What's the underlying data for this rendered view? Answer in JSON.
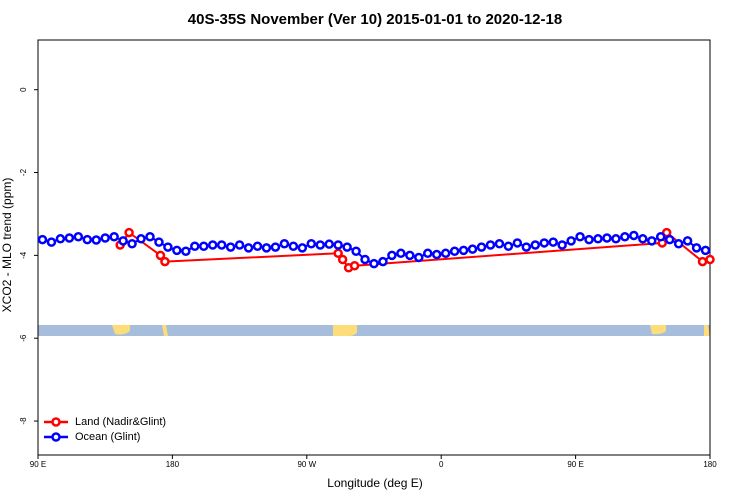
{
  "chart_data": {
    "type": "line",
    "title": "40S-35S November (Ver 10)   2015-01-01 to 2020-12-18",
    "x_label": "Longitude (deg E)",
    "y_label": "XCO2 - MLO trend (ppm)",
    "xlim": [
      90,
      540
    ],
    "ylim": [
      -8.82,
      1.2
    ],
    "xticks": [
      {
        "value": 90,
        "label": "90 E"
      },
      180,
      {
        "value": 270,
        "label": "90 W"
      },
      {
        "value": 360,
        "label": "0"
      },
      {
        "value": 450,
        "label": "90 E"
      },
      {
        "value": 540,
        "label": "180"
      }
    ],
    "yticks": [
      0,
      -2,
      -4,
      -6,
      -8
    ],
    "legend": "bottom-left",
    "series": [
      {
        "name": "Land (Nadir&Glint)",
        "color": "#ff0000",
        "x": [
          145,
          151,
          172,
          175,
          291,
          294,
          298,
          302,
          508,
          511,
          535,
          540
        ],
        "values": [
          -3.75,
          -3.45,
          -4.0,
          -4.15,
          -3.95,
          -4.1,
          -4.3,
          -4.25,
          -3.7,
          -3.45,
          -4.15,
          -4.1
        ]
      },
      {
        "name": "Ocean (Glint)",
        "color": "#0000ff",
        "x": [
          93,
          99,
          105,
          111,
          117,
          123,
          129,
          135,
          141,
          147,
          153,
          159,
          165,
          171,
          177,
          183,
          189,
          195,
          201,
          207,
          213,
          219,
          225,
          231,
          237,
          243,
          249,
          255,
          261,
          267,
          273,
          279,
          285,
          291,
          297,
          303,
          309,
          315,
          321,
          327,
          333,
          339,
          345,
          351,
          357,
          363,
          369,
          375,
          381,
          387,
          393,
          399,
          405,
          411,
          417,
          423,
          429,
          435,
          441,
          447,
          453,
          459,
          465,
          471,
          477,
          483,
          489,
          495,
          501,
          507,
          513,
          519,
          525,
          531,
          537
        ],
        "values": [
          -3.62,
          -3.68,
          -3.6,
          -3.58,
          -3.55,
          -3.62,
          -3.63,
          -3.58,
          -3.55,
          -3.65,
          -3.72,
          -3.6,
          -3.55,
          -3.68,
          -3.8,
          -3.88,
          -3.9,
          -3.78,
          -3.78,
          -3.75,
          -3.75,
          -3.8,
          -3.75,
          -3.82,
          -3.78,
          -3.82,
          -3.8,
          -3.72,
          -3.78,
          -3.82,
          -3.72,
          -3.75,
          -3.73,
          -3.75,
          -3.8,
          -3.9,
          -4.1,
          -4.2,
          -4.15,
          -4.0,
          -3.95,
          -4.0,
          -4.05,
          -3.95,
          -3.98,
          -3.95,
          -3.9,
          -3.88,
          -3.85,
          -3.8,
          -3.75,
          -3.72,
          -3.78,
          -3.7,
          -3.8,
          -3.75,
          -3.7,
          -3.68,
          -3.75,
          -3.65,
          -3.55,
          -3.62,
          -3.6,
          -3.58,
          -3.6,
          -3.55,
          -3.52,
          -3.6,
          -3.65,
          -3.55,
          -3.62,
          -3.72,
          -3.65,
          -3.82,
          -3.88
        ]
      }
    ]
  }
}
